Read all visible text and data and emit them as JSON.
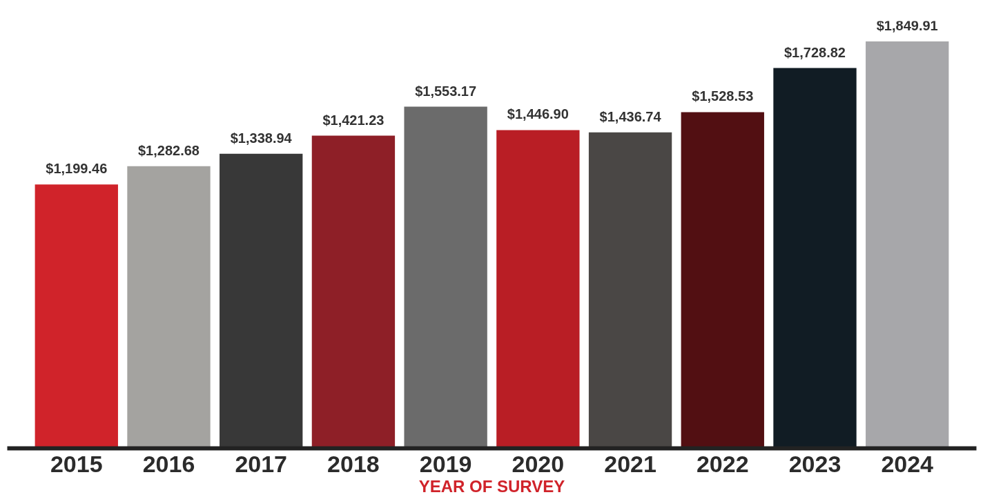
{
  "chart_data": {
    "type": "bar",
    "xlabel": "YEAR OF SURVEY",
    "categories": [
      "2015",
      "2016",
      "2017",
      "2018",
      "2019",
      "2020",
      "2021",
      "2022",
      "2023",
      "2024"
    ],
    "values": [
      1199.46,
      1282.68,
      1338.94,
      1421.23,
      1553.17,
      1446.9,
      1436.74,
      1528.53,
      1728.82,
      1849.91
    ],
    "value_labels": [
      "$1,199.46",
      "$1,282.68",
      "$1,338.94",
      "$1,421.23",
      "$1,553.17",
      "$1,446.90",
      "$1,436.74",
      "$1,528.53",
      "$1,728.82",
      "$1,849.91"
    ],
    "colors": [
      "#d0232a",
      "#a4a3a0",
      "#383838",
      "#8e1f27",
      "#6b6b6b",
      "#b91e25",
      "#4a4745",
      "#520f12",
      "#111c24",
      "#a7a7aa"
    ],
    "grid": false
  }
}
